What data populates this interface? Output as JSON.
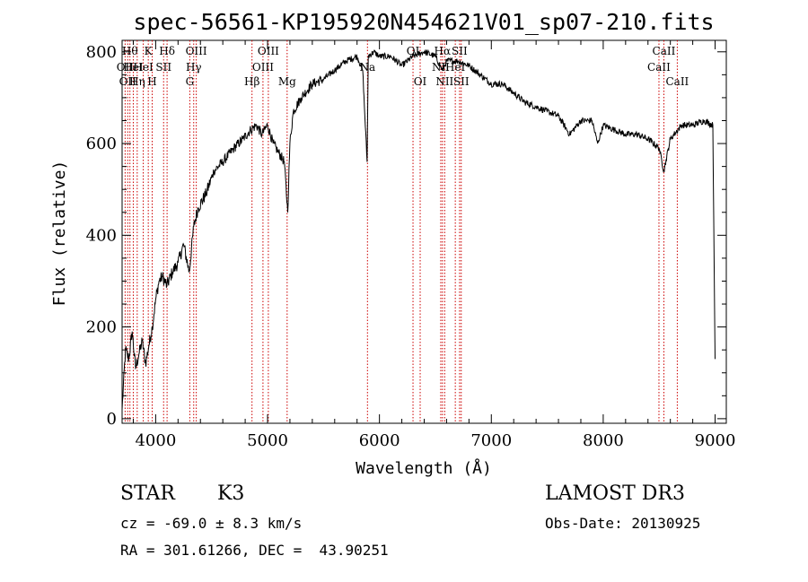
{
  "chart_data": {
    "type": "line",
    "title": "spec-56561-KP195920N454621V01_sp07-210.fits",
    "xlabel": "Wavelength (Å)",
    "ylabel": "Flux (relative)",
    "xlim": [
      3700,
      9100
    ],
    "ylim": [
      -10,
      825
    ],
    "x_ticks": [
      4000,
      5000,
      6000,
      7000,
      8000,
      9000
    ],
    "y_ticks": [
      0,
      200,
      400,
      600,
      800
    ],
    "series": [
      {
        "name": "spectrum",
        "x": [
          3700,
          3730,
          3760,
          3790,
          3820,
          3850,
          3880,
          3910,
          3940,
          3970,
          4000,
          4030,
          4060,
          4100,
          4150,
          4200,
          4250,
          4300,
          4340,
          4380,
          4450,
          4520,
          4600,
          4700,
          4780,
          4850,
          4900,
          4950,
          5000,
          5050,
          5100,
          5150,
          5180,
          5200,
          5230,
          5300,
          5400,
          5500,
          5600,
          5700,
          5800,
          5850,
          5890,
          5896,
          5900,
          5950,
          6000,
          6100,
          6200,
          6300,
          6400,
          6500,
          6563,
          6600,
          6700,
          6800,
          6900,
          7000,
          7100,
          7200,
          7300,
          7400,
          7500,
          7600,
          7700,
          7800,
          7900,
          7950,
          8000,
          8100,
          8200,
          8300,
          8400,
          8500,
          8542,
          8600,
          8700,
          8800,
          8900,
          8980,
          9000
        ],
        "y": [
          20,
          150,
          130,
          190,
          110,
          140,
          170,
          120,
          160,
          200,
          260,
          300,
          310,
          290,
          320,
          340,
          380,
          320,
          420,
          460,
          490,
          540,
          560,
          590,
          610,
          630,
          640,
          620,
          640,
          600,
          580,
          560,
          450,
          600,
          670,
          700,
          730,
          740,
          760,
          780,
          790,
          760,
          560,
          700,
          790,
          800,
          790,
          790,
          770,
          790,
          800,
          790,
          760,
          780,
          780,
          770,
          750,
          730,
          730,
          710,
          690,
          680,
          670,
          660,
          620,
          650,
          650,
          600,
          640,
          630,
          620,
          620,
          610,
          590,
          540,
          610,
          640,
          640,
          650,
          640,
          130
        ]
      }
    ],
    "reference_lines": [
      {
        "x": 3727,
        "label": "OII",
        "row": 1
      },
      {
        "x": 3750,
        "label": "OII",
        "row": 2
      },
      {
        "x": 3770,
        "label": "Hθ",
        "row": 0
      },
      {
        "x": 3800,
        "label": "HeI",
        "row": 1
      },
      {
        "x": 3835,
        "label": "Hη",
        "row": 2
      },
      {
        "x": 3889,
        "label": "HeI",
        "row": 1
      },
      {
        "x": 3934,
        "label": "K",
        "row": 0
      },
      {
        "x": 3969,
        "label": "H",
        "row": 2
      },
      {
        "x": 4071,
        "label": "SII",
        "row": 1
      },
      {
        "x": 4102,
        "label": "Hδ",
        "row": 0
      },
      {
        "x": 4305,
        "label": "G",
        "row": 2
      },
      {
        "x": 4340,
        "label": "Hγ",
        "row": 1
      },
      {
        "x": 4363,
        "label": "OIII",
        "row": 0
      },
      {
        "x": 4861,
        "label": "Hβ",
        "row": 2
      },
      {
        "x": 4959,
        "label": "OIII",
        "row": 1
      },
      {
        "x": 5007,
        "label": "OIII",
        "row": 0
      },
      {
        "x": 5175,
        "label": "Mg",
        "row": 2
      },
      {
        "x": 5893,
        "label": "Na",
        "row": 1
      },
      {
        "x": 6300,
        "label": "OI",
        "row": 0
      },
      {
        "x": 6364,
        "label": "OI",
        "row": 2
      },
      {
        "x": 6548,
        "label": "NII",
        "row": 1
      },
      {
        "x": 6563,
        "label": "Hα",
        "row": 0
      },
      {
        "x": 6583,
        "label": "NII",
        "row": 2
      },
      {
        "x": 6678,
        "label": "HeI",
        "row": 1
      },
      {
        "x": 6716,
        "label": "SII",
        "row": 0
      },
      {
        "x": 6731,
        "label": "SII",
        "row": 2
      },
      {
        "x": 8498,
        "label": "CaII",
        "row": 1
      },
      {
        "x": 8542,
        "label": "CaII",
        "row": 0
      },
      {
        "x": 8662,
        "label": "CaII",
        "row": 2
      }
    ]
  },
  "info": {
    "class_label": "STAR",
    "subclass": "K3",
    "survey": "LAMOST DR3",
    "redshift_text": "cz = -69.0 ± 8.3 km/s",
    "obs_date": "Obs-Date: 20130925",
    "coords": "RA = 301.61266, DEC =  43.90251"
  }
}
